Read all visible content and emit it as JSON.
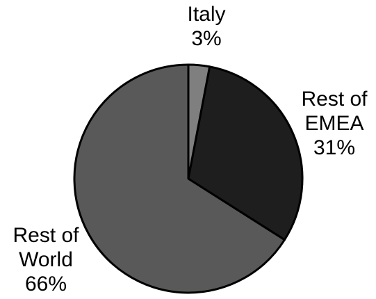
{
  "chart_data": {
    "type": "pie",
    "title": "",
    "start_angle_deg": 0,
    "direction": "clockwise",
    "slices": [
      {
        "name": "Italy",
        "value": 3,
        "value_label": "3%",
        "label_lines": [
          "Italy",
          "3%"
        ],
        "color": "#7f7f7f"
      },
      {
        "name": "Rest of EMEA",
        "value": 31,
        "value_label": "31%",
        "label_lines": [
          "Rest of",
          "EMEA",
          "31%"
        ],
        "color": "#1e1e1e"
      },
      {
        "name": "Rest of World",
        "value": 66,
        "value_label": "66%",
        "label_lines": [
          "Rest of",
          "World",
          "66%"
        ],
        "color": "#595959"
      }
    ],
    "legend": "none",
    "edge_color": "#000000"
  }
}
